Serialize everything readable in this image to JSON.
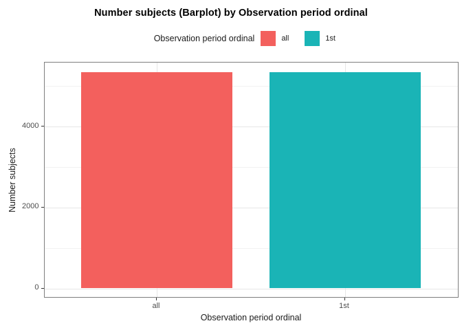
{
  "title": "Number subjects (Barplot) by Observation period ordinal",
  "legend": {
    "title": "Observation period ordinal",
    "items": [
      {
        "label": "all",
        "color": "#f3605d"
      },
      {
        "label": "1st",
        "color": "#1ab4b6"
      }
    ]
  },
  "chart_data": {
    "type": "bar",
    "title": "Number subjects (Barplot) by Observation period ordinal",
    "categories": [
      "all",
      "1st"
    ],
    "values": [
      5350,
      5350
    ],
    "colors": [
      "#f3605d",
      "#1ab4b6"
    ],
    "xlabel": "Observation period ordinal",
    "ylabel": "Number subjects",
    "ylim": [
      0,
      5580
    ],
    "yticks": [
      0,
      2000,
      4000
    ],
    "yticks_minor": [
      1000,
      3000,
      5000
    ],
    "grid": true,
    "legend_position": "top",
    "legend_title": "Observation period ordinal"
  }
}
